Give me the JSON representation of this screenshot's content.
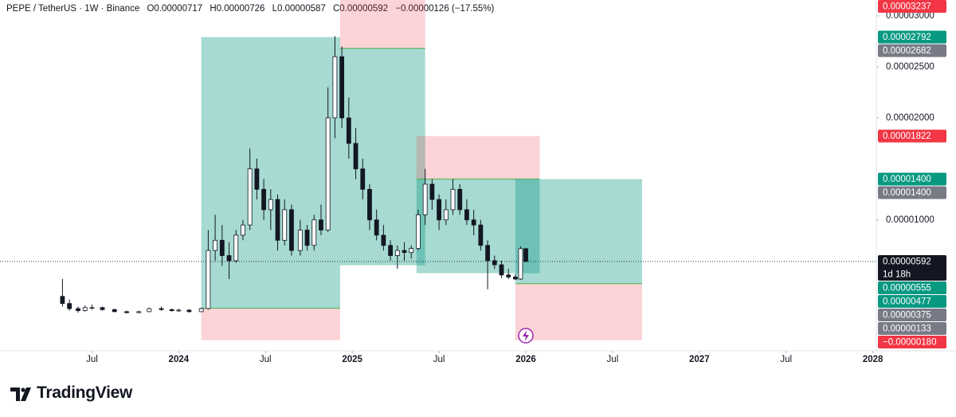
{
  "chart_data": {
    "type": "candlestick",
    "symbol": "PEPE / TetherUS · 1W · Binance",
    "ohlc_header": [
      "O0.00000717",
      "H0.00000726",
      "L0.00000587",
      "C0.00000592",
      "−0.00000126 (−17.55%)"
    ],
    "x": [
      2023.33,
      2023.37,
      2023.42,
      2023.46,
      2023.5,
      2023.56,
      2023.63,
      2023.7,
      2023.77,
      2023.83,
      2023.9,
      2023.96,
      2024.0,
      2024.06,
      2024.13,
      2024.17,
      2024.21,
      2024.25,
      2024.29,
      2024.33,
      2024.37,
      2024.41,
      2024.45,
      2024.49,
      2024.53,
      2024.57,
      2024.61,
      2024.65,
      2024.7,
      2024.74,
      2024.78,
      2024.82,
      2024.86,
      2024.9,
      2024.94,
      2024.98,
      2025.02,
      2025.06,
      2025.1,
      2025.14,
      2025.18,
      2025.22,
      2025.26,
      2025.3,
      2025.34,
      2025.38,
      2025.42,
      2025.46,
      2025.5,
      2025.54,
      2025.58,
      2025.62,
      2025.66,
      2025.7,
      2025.74,
      2025.78,
      2025.82,
      2025.86,
      2025.9,
      2025.94,
      2025.97,
      2026.0
    ],
    "open": [
      2.5e-06,
      1.8e-06,
      1.3e-06,
      1.1e-06,
      1.4e-06,
      1.4e-06,
      1.2e-06,
      1e-06,
      9e-07,
      1e-06,
      1.3e-06,
      1.2e-06,
      1.1e-06,
      1.15e-06,
      1e-06,
      1.3e-06,
      7e-06,
      8e-06,
      6.5e-06,
      6e-06,
      8.5e-06,
      9.5e-06,
      1.5e-05,
      1.3e-05,
      1.1e-05,
      1.2e-05,
      8e-06,
      1.1e-05,
      7e-06,
      9e-06,
      7.5e-06,
      1e-05,
      9e-06,
      2e-05,
      2.6e-05,
      2e-05,
      1.75e-05,
      1.5e-05,
      1.3e-05,
      1e-05,
      8.5e-06,
      7.5e-06,
      6.5e-06,
      7e-06,
      6.8e-06,
      7.2e-06,
      1.05e-05,
      1.35e-05,
      1.2e-05,
      1e-05,
      1.1e-05,
      1.3e-05,
      1.1e-05,
      1e-05,
      9.5e-06,
      7.5e-06,
      6e-06,
      5.6e-06,
      4.6e-06,
      4.4e-06,
      4.2e-06,
      7.17e-06
    ],
    "high": [
      4.2e-06,
      2.2e-06,
      1.5e-06,
      1.6e-06,
      1.7e-06,
      1.5e-06,
      1.3e-06,
      1.1e-06,
      1.1e-06,
      1.4e-06,
      1.5e-06,
      1.3e-06,
      1.3e-06,
      1.25e-06,
      1.4e-06,
      9e-06,
      1.05e-05,
      9.5e-06,
      7.8e-06,
      9e-06,
      1e-05,
      1.7e-05,
      1.6e-05,
      1.4e-05,
      1.3e-05,
      1.25e-05,
      1.2e-05,
      1.15e-05,
      1e-05,
      9.5e-06,
      1.05e-05,
      1.15e-05,
      2.3e-05,
      2.8e-05,
      2.7e-05,
      2.2e-05,
      1.9e-05,
      1.6e-05,
      1.35e-05,
      1.1e-05,
      9.5e-06,
      8e-06,
      7.5e-06,
      7.8e-06,
      7.5e-06,
      1.1e-05,
      1.5e-05,
      1.4e-05,
      1.25e-05,
      1.2e-05,
      1.4e-05,
      1.35e-05,
      1.2e-05,
      1.1e-05,
      1e-05,
      8e-06,
      6.5e-06,
      6e-06,
      5.2e-06,
      4.7e-06,
      7.4e-06,
      7.26e-06
    ],
    "low": [
      1.5e-06,
      1.1e-06,
      9e-07,
      1e-06,
      1.2e-06,
      1.1e-06,
      9.5e-07,
      8.5e-07,
      8.5e-07,
      9.5e-07,
      1.1e-06,
      1e-06,
      1e-06,
      9e-07,
      9.5e-07,
      1.2e-06,
      6e-06,
      5.5e-06,
      4.2e-06,
      5.8e-06,
      8e-06,
      9e-06,
      1.2e-05,
      1e-05,
      9e-06,
      7e-06,
      7.5e-06,
      6.5e-06,
      6.5e-06,
      7e-06,
      7e-06,
      8.5e-06,
      8.8e-06,
      1.8e-05,
      1.9e-05,
      1.6e-05,
      1.4e-05,
      1.2e-05,
      9e-06,
      8e-06,
      7e-06,
      6e-06,
      5.2e-06,
      6e-06,
      6.2e-06,
      7e-06,
      9.5e-06,
      1.1e-05,
      9e-06,
      9.5e-06,
      1.05e-05,
      1.05e-05,
      9.5e-06,
      8.5e-06,
      7e-06,
      3.2e-06,
      5.2e-06,
      4.3e-06,
      4.2e-06,
      4.1e-06,
      4.1e-06,
      5.87e-06
    ],
    "close": [
      1.8e-06,
      1.3e-06,
      1.1e-06,
      1.4e-06,
      1.4e-06,
      1.2e-06,
      1e-06,
      9e-07,
      1e-06,
      1.3e-06,
      1.2e-06,
      1.1e-06,
      1.15e-06,
      1e-06,
      1.3e-06,
      7e-06,
      8e-06,
      6.5e-06,
      6e-06,
      8.5e-06,
      9.5e-06,
      1.5e-05,
      1.3e-05,
      1.1e-05,
      1.2e-05,
      8e-06,
      1.1e-05,
      7e-06,
      9e-06,
      7.5e-06,
      1e-05,
      9e-06,
      2e-05,
      2.6e-05,
      2e-05,
      1.75e-05,
      1.5e-05,
      1.3e-05,
      1e-05,
      8.5e-06,
      7.5e-06,
      6.5e-06,
      7e-06,
      6.8e-06,
      7.2e-06,
      1.05e-05,
      1.35e-05,
      1.2e-05,
      1e-05,
      1.1e-05,
      1.3e-05,
      1.1e-05,
      1e-05,
      9.5e-06,
      7.5e-06,
      6e-06,
      5.6e-06,
      4.6e-06,
      4.4e-06,
      4.2e-06,
      7.18e-06,
      5.92e-06
    ],
    "up_color": "#ffffff",
    "down_color": "#131722",
    "xlim": [
      2022.97,
      2028.02
    ],
    "xticks": [
      {
        "value": 2023.5,
        "label": "Jul"
      },
      2024,
      {
        "value": 2024.5,
        "label": "Jul"
      },
      2025,
      {
        "value": 2025.5,
        "label": "Jul"
      },
      2026,
      {
        "value": 2026.5,
        "label": "Jul"
      },
      2027,
      {
        "value": 2027.5,
        "label": "Jul"
      },
      2028
    ],
    "ylim": [
      -2.84e-06,
      3.156e-05
    ],
    "yticks": [
      {
        "value": 3e-05,
        "label": "0.00003000"
      },
      {
        "value": 2.5e-05,
        "label": "0.00002500"
      },
      {
        "value": 2e-05,
        "label": "0.00002000"
      },
      {
        "value": 1e-05,
        "label": "0.00001000"
      }
    ],
    "grid": false,
    "positions": [
      {
        "side": "long",
        "start": 2024.13,
        "end": 2024.93,
        "entry": 1.33e-06,
        "target": 2.792e-05,
        "stop": -1.8e-06
      },
      {
        "side": "short",
        "start": 2024.93,
        "end": 2025.42,
        "entry": 2.682e-05,
        "target": 5.55e-06,
        "stop": 3.237e-05
      },
      {
        "side": "short",
        "start": 2025.37,
        "end": 2026.08,
        "entry": 1.4e-05,
        "target": 4.77e-06,
        "stop": 1.822e-05
      },
      {
        "side": "long",
        "start": 2025.94,
        "end": 2026.67,
        "entry": 3.75e-06,
        "target": 1.4e-05,
        "stop": -1.8e-06
      }
    ],
    "target_color": "#089981",
    "stop_color": "#f23645",
    "last_price": {
      "value": 5.92e-06,
      "label": "0.00000592",
      "countdown": "1d 18h"
    },
    "price_labels": [
      {
        "value": 3.237e-05,
        "label": "0.00003237",
        "color": "#f23645"
      },
      {
        "value": 2.792e-05,
        "label": "0.00002792",
        "color": "#089981"
      },
      {
        "value": 2.682e-05,
        "label": "0.00002682",
        "color": "#787b86"
      },
      {
        "value": 1.822e-05,
        "label": "0.00001822",
        "color": "#f23645"
      },
      {
        "value": 1.4e-05,
        "label": "0.00001400",
        "color": "#089981"
      },
      {
        "value": 1.4e-05,
        "label": "0.00001400",
        "color": "#787b86"
      },
      {
        "value": 5.55e-06,
        "label": "0.00000555",
        "color": "#089981"
      },
      {
        "value": 4.77e-06,
        "label": "0.00000477",
        "color": "#089981"
      },
      {
        "value": 3.75e-06,
        "label": "0.00000375",
        "color": "#787b86"
      },
      {
        "value": 1.33e-06,
        "label": "0.00000133",
        "color": "#787b86"
      },
      {
        "value": -1.8e-06,
        "label": "−0.00000180",
        "color": "#f23645"
      }
    ],
    "brand": "TradingView"
  }
}
